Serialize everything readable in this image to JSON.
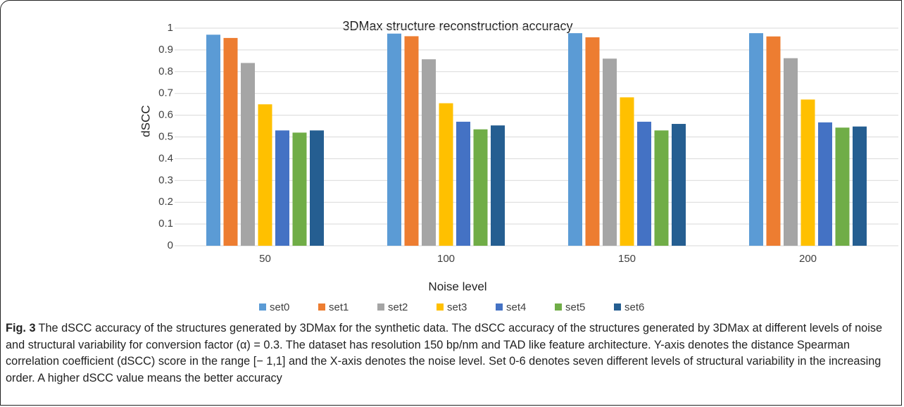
{
  "chart_data": {
    "type": "bar",
    "title": "3DMax structure reconstruction accuracy",
    "x_label": "Noise level",
    "y_label": "dSCC",
    "categories": [
      "50",
      "100",
      "150",
      "200"
    ],
    "series": [
      {
        "name": "set0",
        "color": "#5b9bd5",
        "values": [
          0.97,
          0.975,
          0.977,
          0.977
        ]
      },
      {
        "name": "set1",
        "color": "#ed7d31",
        "values": [
          0.955,
          0.963,
          0.958,
          0.962
        ]
      },
      {
        "name": "set2",
        "color": "#a5a5a5",
        "values": [
          0.84,
          0.857,
          0.86,
          0.862
        ]
      },
      {
        "name": "set3",
        "color": "#ffc000",
        "values": [
          0.65,
          0.655,
          0.682,
          0.672
        ]
      },
      {
        "name": "set4",
        "color": "#4472c4",
        "values": [
          0.53,
          0.57,
          0.57,
          0.567
        ]
      },
      {
        "name": "set5",
        "color": "#70ad47",
        "values": [
          0.52,
          0.535,
          0.53,
          0.543
        ]
      },
      {
        "name": "set6",
        "color": "#255e91",
        "values": [
          0.53,
          0.553,
          0.56,
          0.548
        ]
      }
    ],
    "ylim": [
      0,
      1
    ],
    "yticks": [
      0,
      0.1,
      0.2,
      0.3,
      0.4,
      0.5,
      0.6,
      0.7,
      0.8,
      0.9,
      1
    ],
    "grid": true,
    "legend": "bottom"
  },
  "caption": {
    "label": "Fig. 3",
    "text": "The dSCC accuracy of the structures generated by 3DMax for the synthetic data. The dSCC accuracy of the structures generated by 3DMax at different levels of noise and structural variability for conversion factor (α) = 0.3. The dataset has resolution 150 bp/nm and TAD like feature architecture. Y-axis denotes the distance Spearman correlation coefficient (dSCC) score in the range [− 1,1] and the X-axis denotes the noise level. Set 0-6 denotes seven different levels of structural variability in the increasing order. A higher dSCC value means the better accuracy"
  }
}
